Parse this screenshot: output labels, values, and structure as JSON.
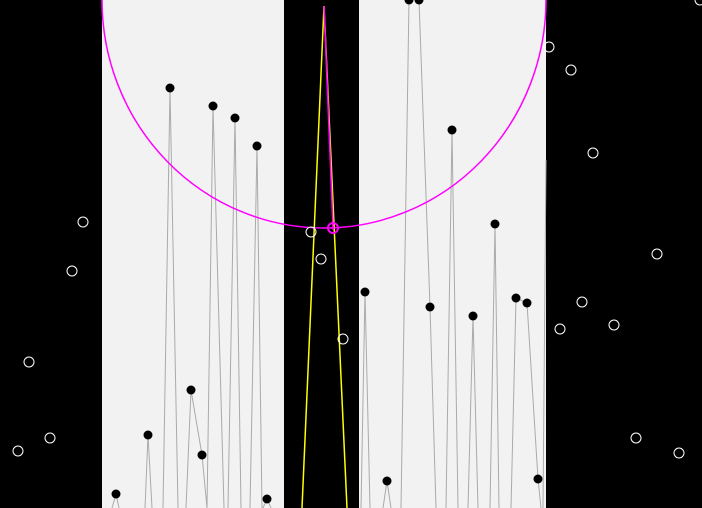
{
  "colors": {
    "background": "#000000",
    "panel": "#f2f2f2",
    "circle": "#ff00ff",
    "needle": "#ffff00",
    "trace": "#aaaaaa",
    "filled_point": "#000000",
    "hollow_point": "#ffffff"
  }
}
